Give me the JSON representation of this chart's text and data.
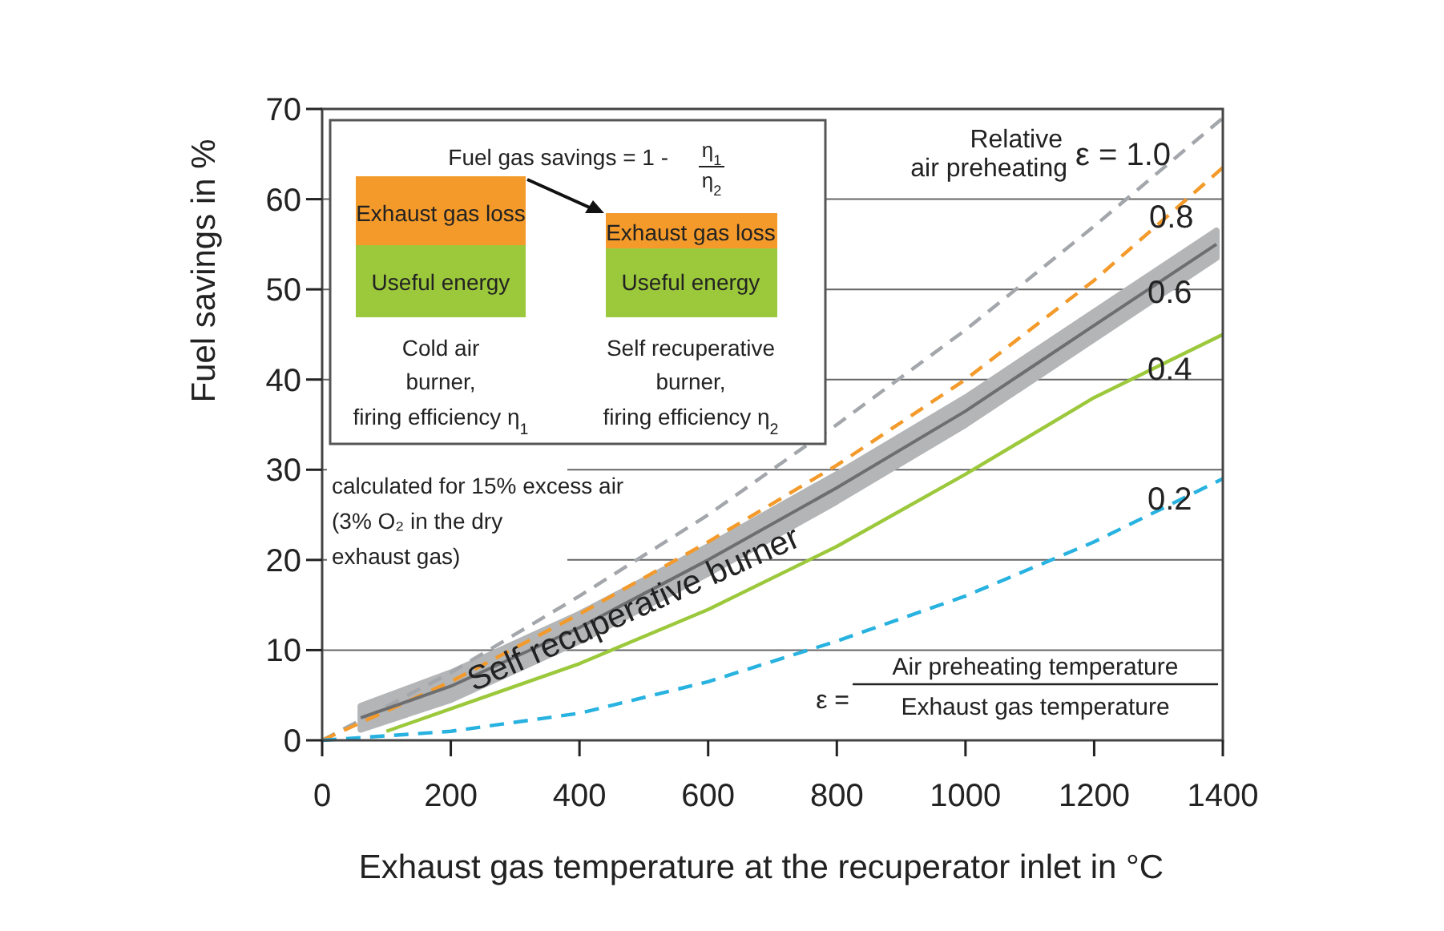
{
  "chart_data": {
    "type": "line",
    "xlabel": "Exhaust gas temperature at the recuperator inlet in °C",
    "ylabel": "Fuel savings in %",
    "xlim": [
      0,
      1400
    ],
    "xticks": [
      0,
      200,
      400,
      600,
      800,
      1000,
      1200,
      1400
    ],
    "ylim": [
      0,
      70
    ],
    "yticks": [
      0,
      10,
      20,
      30,
      40,
      50,
      60,
      70
    ],
    "grid": "y",
    "legend": false,
    "series": [
      {
        "name": "ε = 1.0",
        "color": "#a3a6aa",
        "line_style": "dashed",
        "x": [
          0,
          200,
          400,
          600,
          745,
          800,
          1000,
          1200,
          1400
        ],
        "values": [
          0,
          7.5,
          16,
          25,
          32.3,
          35,
          45.5,
          57,
          69
        ]
      },
      {
        "name": "0.8",
        "color": "#f39a2a",
        "line_style": "dashed",
        "x": [
          0,
          200,
          400,
          600,
          800,
          1000,
          1200,
          1400
        ],
        "values": [
          0,
          6.5,
          14,
          22,
          30.5,
          40,
          51,
          63.5
        ]
      },
      {
        "name": "0.6",
        "color": "#6d6e70",
        "line_style": "solid",
        "x": [
          60,
          200,
          400,
          600,
          800,
          1000,
          1200,
          1390
        ],
        "values": [
          2.5,
          6,
          12.5,
          20,
          28,
          36.5,
          46,
          55
        ],
        "lower": [
          1.2,
          4.5,
          11,
          18.5,
          26.5,
          35,
          44.5,
          53.5
        ],
        "upper": [
          3.8,
          7.5,
          14,
          21.5,
          29.5,
          38,
          47.5,
          56.5
        ]
      },
      {
        "name": "0.4",
        "color": "#9cc83c",
        "line_style": "solid",
        "x": [
          100,
          200,
          400,
          600,
          800,
          1000,
          1200,
          1400
        ],
        "values": [
          1,
          3.5,
          8.5,
          14.5,
          21.5,
          29.5,
          38,
          45
        ]
      },
      {
        "name": "0.2",
        "color": "#27b2e0",
        "line_style": "dashed",
        "x": [
          0,
          200,
          400,
          600,
          800,
          1000,
          1200,
          1400
        ],
        "values": [
          0,
          1,
          3,
          6.5,
          11,
          16,
          22,
          29
        ]
      }
    ],
    "annotations": [
      "Fuel gas savings = 1 -",
      "η$_{1}$",
      "η$_{2}$",
      "Exhaust gas loss",
      "Useful energy",
      "Exhaust gas loss",
      "Useful energy",
      "Cold air",
      "burner,",
      "firing efficiency η$_{1}$",
      "Self recuperative",
      "burner,",
      "firing efficiency η$_{2}$",
      "Relative",
      "air preheating",
      "calculated for 15% excess air",
      "(3% O₂ in the dry",
      "exhaust gas)",
      "Self recuperative burner",
      "ε =",
      "Air preheating temperature",
      "Exhaust gas temperature"
    ]
  }
}
